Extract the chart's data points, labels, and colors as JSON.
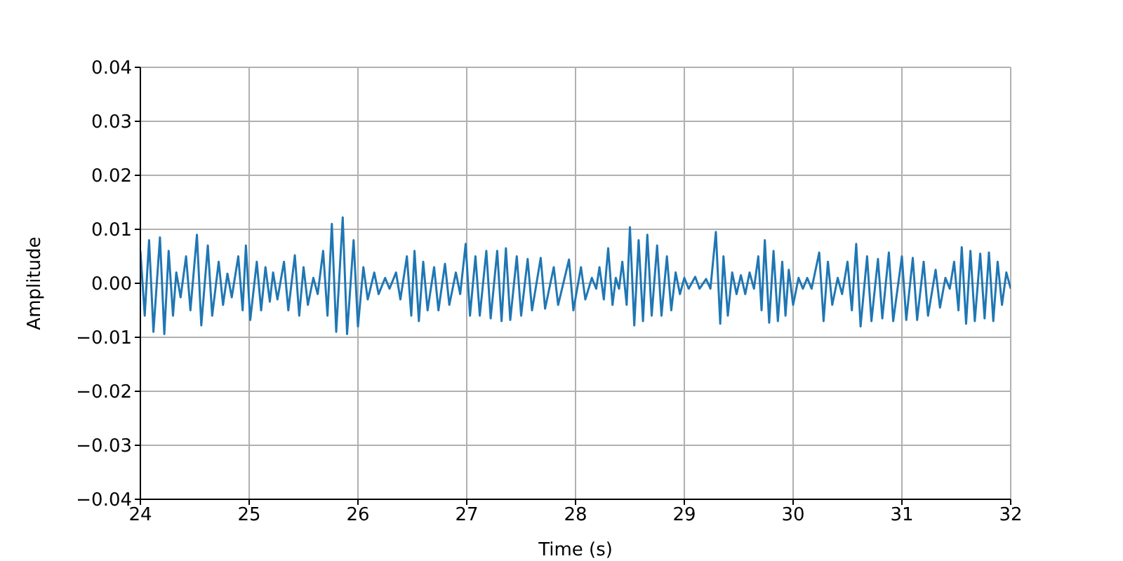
{
  "chart_data": {
    "type": "line",
    "xlabel": "Time (s)",
    "ylabel": "Amplitude",
    "xlim": [
      24,
      32
    ],
    "xticks": [
      24,
      25,
      26,
      27,
      28,
      29,
      30,
      31,
      32
    ],
    "ylim": [
      -0.04,
      0.04
    ],
    "yticks": [
      {
        "value": -0.04,
        "label": "−0.04"
      },
      {
        "value": -0.03,
        "label": "−0.03"
      },
      {
        "value": -0.02,
        "label": "−0.02"
      },
      {
        "value": -0.01,
        "label": "−0.01"
      },
      {
        "value": 0,
        "label": "0.00"
      },
      {
        "value": 0.01,
        "label": "0.01"
      },
      {
        "value": 0.02,
        "label": "0.02"
      },
      {
        "value": 0.03,
        "label": "0.03"
      },
      {
        "value": 0.04,
        "label": "0.04"
      }
    ],
    "grid": true,
    "x": [
      24.0,
      24.04,
      24.08,
      24.12,
      24.18,
      24.22,
      24.26,
      24.3,
      24.33,
      24.37,
      24.42,
      24.46,
      24.52,
      24.56,
      24.62,
      24.66,
      24.72,
      24.76,
      24.8,
      24.84,
      24.9,
      24.94,
      24.97,
      25.01,
      25.07,
      25.11,
      25.15,
      25.19,
      25.22,
      25.26,
      25.32,
      25.36,
      25.42,
      25.46,
      25.5,
      25.54,
      25.59,
      25.63,
      25.68,
      25.72,
      25.76,
      25.8,
      25.86,
      25.9,
      25.96,
      26.0,
      26.05,
      26.09,
      26.15,
      26.19,
      26.25,
      26.29,
      26.35,
      26.39,
      26.45,
      26.49,
      26.52,
      26.56,
      26.6,
      26.64,
      26.7,
      26.74,
      26.8,
      26.84,
      26.9,
      26.94,
      26.99,
      27.03,
      27.08,
      27.12,
      27.18,
      27.22,
      27.28,
      27.32,
      27.36,
      27.4,
      27.46,
      27.5,
      27.56,
      27.6,
      27.68,
      27.72,
      27.8,
      27.84,
      27.94,
      27.98,
      28.05,
      28.09,
      28.15,
      28.19,
      28.22,
      28.26,
      28.3,
      28.34,
      28.37,
      28.4,
      28.43,
      28.47,
      28.5,
      28.54,
      28.58,
      28.62,
      28.66,
      28.7,
      28.75,
      28.79,
      28.84,
      28.88,
      28.92,
      28.96,
      29.0,
      29.04,
      29.1,
      29.14,
      29.2,
      29.24,
      29.29,
      29.33,
      29.36,
      29.4,
      29.44,
      29.48,
      29.52,
      29.56,
      29.6,
      29.64,
      29.68,
      29.71,
      29.74,
      29.78,
      29.82,
      29.86,
      29.9,
      29.93,
      29.96,
      30.0,
      30.05,
      30.09,
      30.13,
      30.17,
      30.24,
      30.28,
      30.32,
      30.36,
      30.41,
      30.45,
      30.5,
      30.54,
      30.58,
      30.62,
      30.68,
      30.72,
      30.78,
      30.82,
      30.88,
      30.92,
      31.0,
      31.04,
      31.1,
      31.14,
      31.2,
      31.24,
      31.31,
      31.35,
      31.4,
      31.44,
      31.48,
      31.52,
      31.55,
      31.59,
      31.63,
      31.67,
      31.72,
      31.76,
      31.8,
      31.84,
      31.88,
      31.92,
      31.96,
      32.0
    ],
    "series": [
      {
        "color": "#1f77b4",
        "values": [
          0.006,
          -0.006,
          0.008,
          -0.009,
          0.0085,
          -0.0094,
          0.006,
          -0.006,
          0.002,
          -0.0026,
          0.005,
          -0.005,
          0.009,
          -0.0078,
          0.007,
          -0.006,
          0.004,
          -0.004,
          0.0018,
          -0.0026,
          0.005,
          -0.005,
          0.007,
          -0.0068,
          0.004,
          -0.005,
          0.003,
          -0.0034,
          0.002,
          -0.003,
          0.004,
          -0.005,
          0.0052,
          -0.006,
          0.003,
          -0.004,
          0.001,
          -0.002,
          0.006,
          -0.006,
          0.011,
          -0.009,
          0.0122,
          -0.0094,
          0.008,
          -0.008,
          0.003,
          -0.003,
          0.002,
          -0.002,
          0.001,
          -0.001,
          0.002,
          -0.003,
          0.005,
          -0.006,
          0.006,
          -0.007,
          0.004,
          -0.005,
          0.003,
          -0.005,
          0.0036,
          -0.004,
          0.002,
          -0.002,
          0.0073,
          -0.006,
          0.005,
          -0.006,
          0.006,
          -0.0065,
          0.006,
          -0.007,
          0.0065,
          -0.0068,
          0.005,
          -0.006,
          0.0045,
          -0.005,
          0.0047,
          -0.0047,
          0.003,
          -0.004,
          0.0044,
          -0.005,
          0.003,
          -0.003,
          0.001,
          -0.001,
          0.003,
          -0.003,
          0.0065,
          -0.004,
          0.001,
          -0.001,
          0.004,
          -0.004,
          0.0104,
          -0.0078,
          0.008,
          -0.007,
          0.009,
          -0.006,
          0.007,
          -0.006,
          0.005,
          -0.005,
          0.002,
          -0.002,
          0.001,
          -0.001,
          0.0012,
          -0.001,
          0.0008,
          -0.001,
          0.0095,
          -0.0075,
          0.005,
          -0.006,
          0.002,
          -0.002,
          0.0015,
          -0.002,
          0.002,
          -0.001,
          0.005,
          -0.005,
          0.008,
          -0.0073,
          0.006,
          -0.007,
          0.004,
          -0.006,
          0.0025,
          -0.004,
          0.001,
          -0.001,
          0.001,
          -0.001,
          0.0057,
          -0.007,
          0.004,
          -0.004,
          0.001,
          -0.002,
          0.004,
          -0.005,
          0.0073,
          -0.008,
          0.005,
          -0.007,
          0.0045,
          -0.0065,
          0.0057,
          -0.007,
          0.005,
          -0.0068,
          0.0047,
          -0.0068,
          0.004,
          -0.006,
          0.0025,
          -0.0045,
          0.001,
          -0.001,
          0.004,
          -0.005,
          0.0067,
          -0.0075,
          0.006,
          -0.007,
          0.0055,
          -0.0065,
          0.0057,
          -0.007,
          0.004,
          -0.004,
          0.002,
          -0.001
        ]
      }
    ]
  }
}
